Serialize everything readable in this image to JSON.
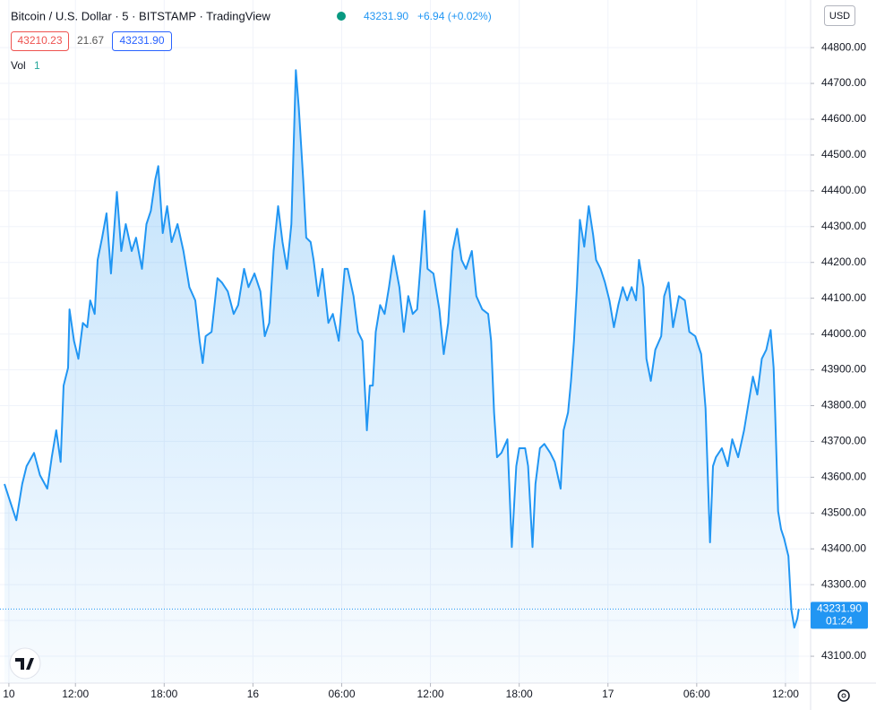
{
  "chart_data": {
    "type": "area",
    "title": "Bitcoin / U.S. Dollar · 5 · BITSTAMP · TradingView",
    "price_text": "43231.90",
    "change_text": "+6.94 (+0.02%)",
    "bid": "43210.23",
    "spread": "21.67",
    "ask": "43231.90",
    "volume_label": "Vol",
    "volume_value": "1",
    "currency": "USD",
    "last_label": "43231.90",
    "countdown": "01:24",
    "color": "#2196f3",
    "grid": true,
    "xlim": [
      6.9,
      61.7
    ],
    "ylim": [
      43025,
      44933
    ],
    "xticks": [
      {
        "value": 7.5,
        "label": "10"
      },
      {
        "value": 12,
        "label": "12:00"
      },
      {
        "value": 18,
        "label": "18:00"
      },
      {
        "value": 24,
        "label": "16"
      },
      {
        "value": 30,
        "label": "06:00"
      },
      {
        "value": 36,
        "label": "12:00"
      },
      {
        "value": 42,
        "label": "18:00"
      },
      {
        "value": 48,
        "label": "17"
      },
      {
        "value": 54,
        "label": "06:00"
      },
      {
        "value": 60,
        "label": "12:00"
      }
    ],
    "yticks": [
      {
        "value": 43100,
        "label": "43100.00"
      },
      {
        "value": 43200,
        "label": "43200.00"
      },
      {
        "value": 43300,
        "label": "43300.00"
      },
      {
        "value": 43400,
        "label": "43400.00"
      },
      {
        "value": 43500,
        "label": "43500.00"
      },
      {
        "value": 43600,
        "label": "43600.00"
      },
      {
        "value": 43700,
        "label": "43700.00"
      },
      {
        "value": 43800,
        "label": "43800.00"
      },
      {
        "value": 43900,
        "label": "43900.00"
      },
      {
        "value": 44000,
        "label": "44000.00"
      },
      {
        "value": 44100,
        "label": "44100.00"
      },
      {
        "value": 44200,
        "label": "44200.00"
      },
      {
        "value": 44300,
        "label": "44300.00"
      },
      {
        "value": 44400,
        "label": "44400.00"
      },
      {
        "value": 44500,
        "label": "44500.00"
      },
      {
        "value": 44600,
        "label": "44600.00"
      },
      {
        "value": 44700,
        "label": "44700.00"
      },
      {
        "value": 44800,
        "label": "44800.00"
      }
    ],
    "x": [
      7.2,
      7.5,
      8.0,
      8.4,
      8.7,
      9.2,
      9.6,
      10.1,
      10.4,
      10.7,
      11.0,
      11.2,
      11.5,
      11.6,
      11.9,
      12.2,
      12.5,
      12.8,
      13.0,
      13.3,
      13.5,
      13.8,
      14.1,
      14.4,
      14.8,
      15.1,
      15.4,
      15.8,
      16.1,
      16.5,
      16.8,
      17.1,
      17.4,
      17.6,
      17.9,
      18.2,
      18.5,
      18.9,
      19.3,
      19.7,
      20.1,
      20.4,
      20.6,
      20.8,
      21.2,
      21.6,
      21.9,
      22.3,
      22.7,
      23.0,
      23.4,
      23.7,
      24.1,
      24.5,
      24.8,
      25.1,
      25.4,
      25.7,
      26.0,
      26.3,
      26.6,
      26.9,
      27.1,
      27.4,
      27.6,
      27.9,
      28.1,
      28.4,
      28.7,
      29.1,
      29.4,
      29.8,
      30.2,
      30.4,
      30.8,
      31.1,
      31.4,
      31.6,
      31.7,
      31.9,
      32.1,
      32.3,
      32.6,
      32.9,
      33.2,
      33.5,
      33.9,
      34.2,
      34.5,
      34.8,
      35.1,
      35.4,
      35.6,
      35.8,
      36.2,
      36.6,
      36.9,
      37.2,
      37.5,
      37.8,
      38.1,
      38.4,
      38.8,
      39.1,
      39.5,
      39.9,
      40.1,
      40.3,
      40.5,
      40.8,
      41.2,
      41.5,
      41.8,
      42.0,
      42.4,
      42.6,
      42.9,
      43.1,
      43.4,
      43.7,
      44.1,
      44.4,
      44.8,
      45.0,
      45.3,
      45.5,
      45.7,
      45.9,
      46.1,
      46.4,
      46.7,
      47.0,
      47.2,
      47.5,
      47.8,
      48.1,
      48.4,
      48.7,
      49.0,
      49.3,
      49.6,
      49.9,
      50.1,
      50.4,
      50.6,
      50.9,
      51.2,
      51.6,
      51.8,
      52.1,
      52.4,
      52.8,
      53.2,
      53.5,
      53.9,
      54.3,
      54.6,
      54.9,
      55.1,
      55.3,
      55.7,
      56.1,
      56.4,
      56.8,
      57.2,
      57.5,
      57.8,
      58.1,
      58.4,
      58.7,
      59.0,
      59.2,
      59.3,
      59.5,
      59.7,
      59.9,
      60.2,
      60.4,
      60.6,
      60.8,
      60.9
    ],
    "values": [
      43581,
      43543,
      43480,
      43581,
      43631,
      43668,
      43606,
      43568,
      43656,
      43731,
      43643,
      43856,
      43906,
      44069,
      43981,
      43931,
      44031,
      44019,
      44094,
      44056,
      44207,
      44269,
      44337,
      44169,
      44397,
      44232,
      44307,
      44232,
      44269,
      44182,
      44307,
      44344,
      44432,
      44469,
      44282,
      44357,
      44257,
      44307,
      44232,
      44131,
      44094,
      43981,
      43919,
      43994,
      44006,
      44156,
      44144,
      44119,
      44056,
      44081,
      44182,
      44131,
      44169,
      44119,
      43994,
      44031,
      44232,
      44357,
      44257,
      44182,
      44307,
      44737,
      44632,
      44432,
      44269,
      44257,
      44207,
      44106,
      44182,
      44031,
      44056,
      43981,
      44182,
      44182,
      44106,
      44006,
      43981,
      43818,
      43731,
      43856,
      43856,
      44006,
      44081,
      44056,
      44131,
      44219,
      44131,
      44006,
      44106,
      44056,
      44069,
      44232,
      44344,
      44182,
      44169,
      44069,
      43944,
      44031,
      44232,
      44294,
      44207,
      44182,
      44232,
      44106,
      44069,
      44056,
      43981,
      43781,
      43656,
      43668,
      43706,
      43405,
      43631,
      43681,
      43681,
      43631,
      43405,
      43581,
      43681,
      43693,
      43668,
      43643,
      43568,
      43731,
      43781,
      43869,
      43981,
      44131,
      44319,
      44244,
      44357,
      44277,
      44207,
      44182,
      44144,
      44094,
      44019,
      44081,
      44131,
      44094,
      44131,
      44094,
      44207,
      44131,
      43931,
      43869,
      43956,
      43994,
      44106,
      44144,
      44019,
      44106,
      44094,
      44006,
      43994,
      43944,
      43793,
      43418,
      43631,
      43656,
      43681,
      43631,
      43706,
      43656,
      43731,
      43806,
      43881,
      43831,
      43931,
      43956,
      44011,
      43906,
      43781,
      43505,
      43455,
      43430,
      43380,
      43230,
      43180,
      43205,
      43231.9
    ]
  }
}
